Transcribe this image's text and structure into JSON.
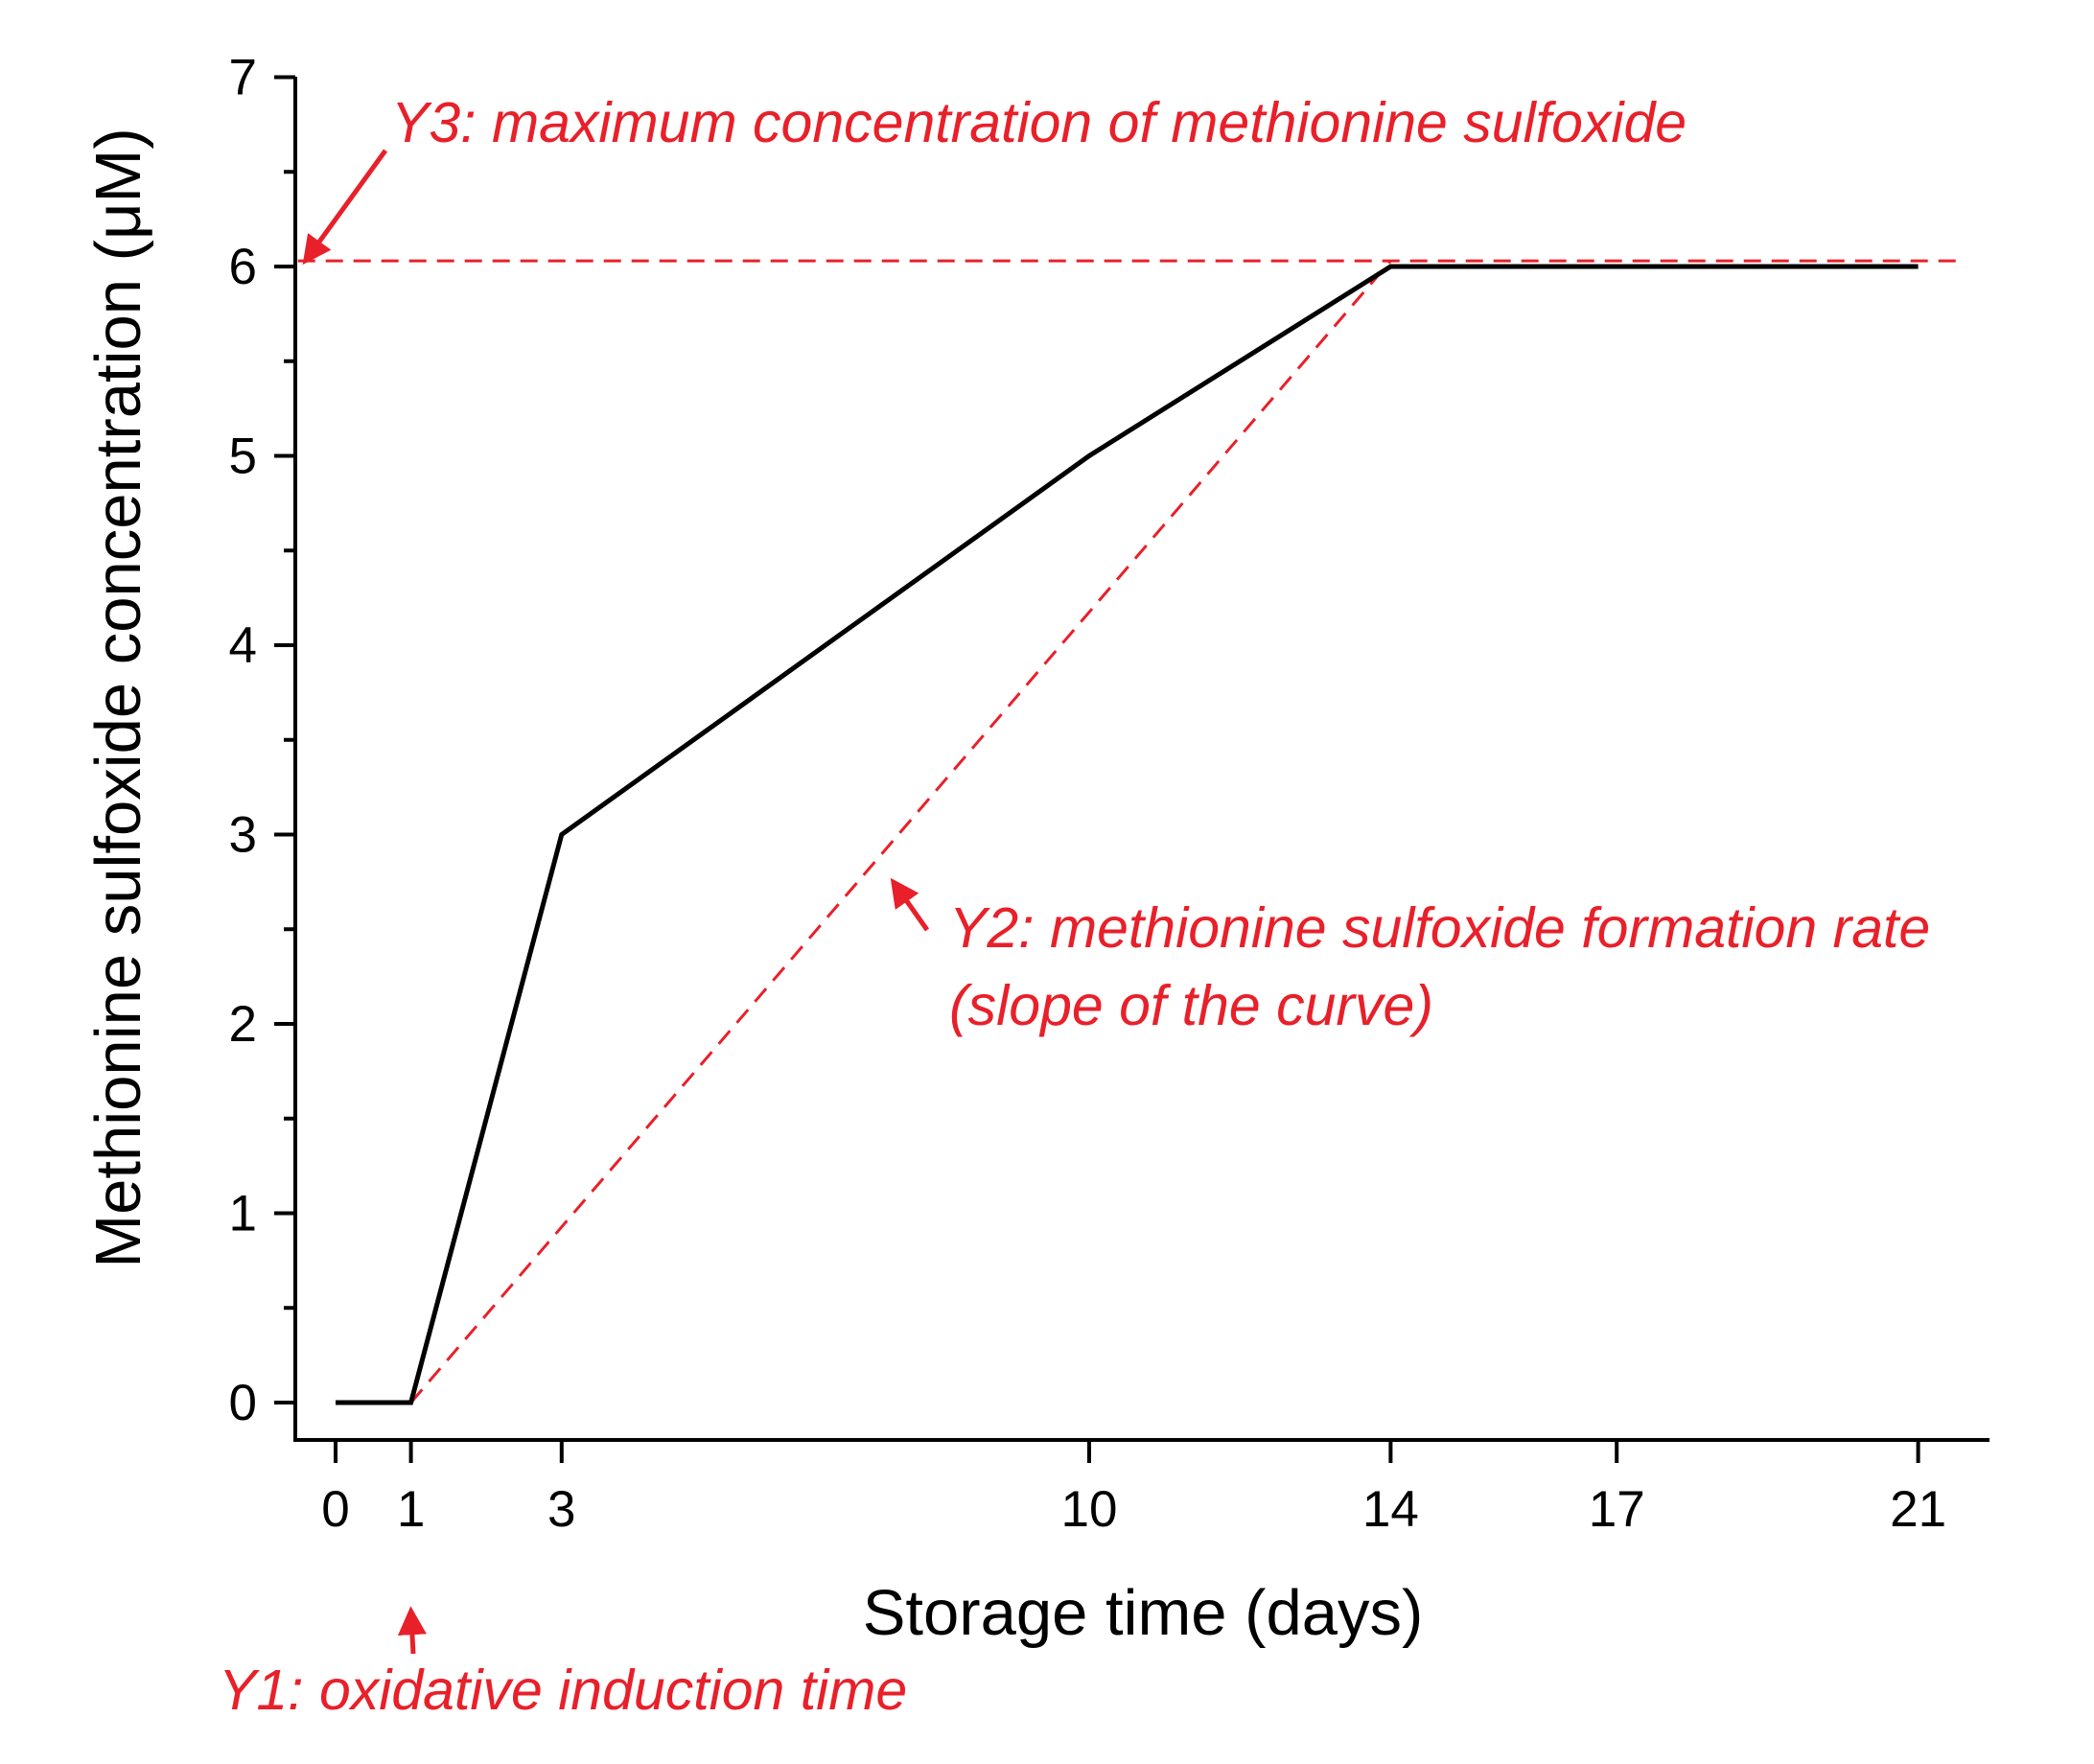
{
  "colors": {
    "curve": "#000000",
    "annotation": "#e8202a",
    "axis": "#000000"
  },
  "chart_data": {
    "type": "line",
    "title": "",
    "xlabel": "Storage time (days)",
    "ylabel": "Methionine sulfoxide concentration (μM)",
    "xlim": [
      -0.5,
      21.5
    ],
    "ylim": [
      -0.2,
      7
    ],
    "x_ticks": [
      0,
      1,
      3,
      10,
      14,
      17,
      21
    ],
    "y_ticks": [
      0,
      1,
      2,
      3,
      4,
      5,
      6,
      7
    ],
    "grid": false,
    "series": [
      {
        "x": [
          0,
          1,
          3,
          10,
          14,
          21
        ],
        "y": [
          0,
          0,
          3,
          5,
          6,
          6
        ]
      }
    ],
    "reference_lines": {
      "max_concentration": {
        "y": 6.03,
        "x_from": -0.5,
        "x_to": 21.5
      },
      "formation_rate": {
        "from": [
          1,
          0
        ],
        "to": [
          14,
          6.03
        ]
      }
    },
    "annotations": [
      {
        "id": "y1",
        "lines": [
          "Y1: oxidative induction time"
        ],
        "points_to": [
          1,
          -1.1
        ]
      },
      {
        "id": "y2",
        "lines": [
          "Y2: methionine sulfoxide formation rate",
          "(slope of the curve)"
        ],
        "points_to": [
          7.4,
          2.75
        ]
      },
      {
        "id": "y3",
        "lines": [
          "Y3: maximum concentration of methionine sulfoxide"
        ],
        "points_to": [
          -0.4,
          6.03
        ]
      }
    ]
  }
}
